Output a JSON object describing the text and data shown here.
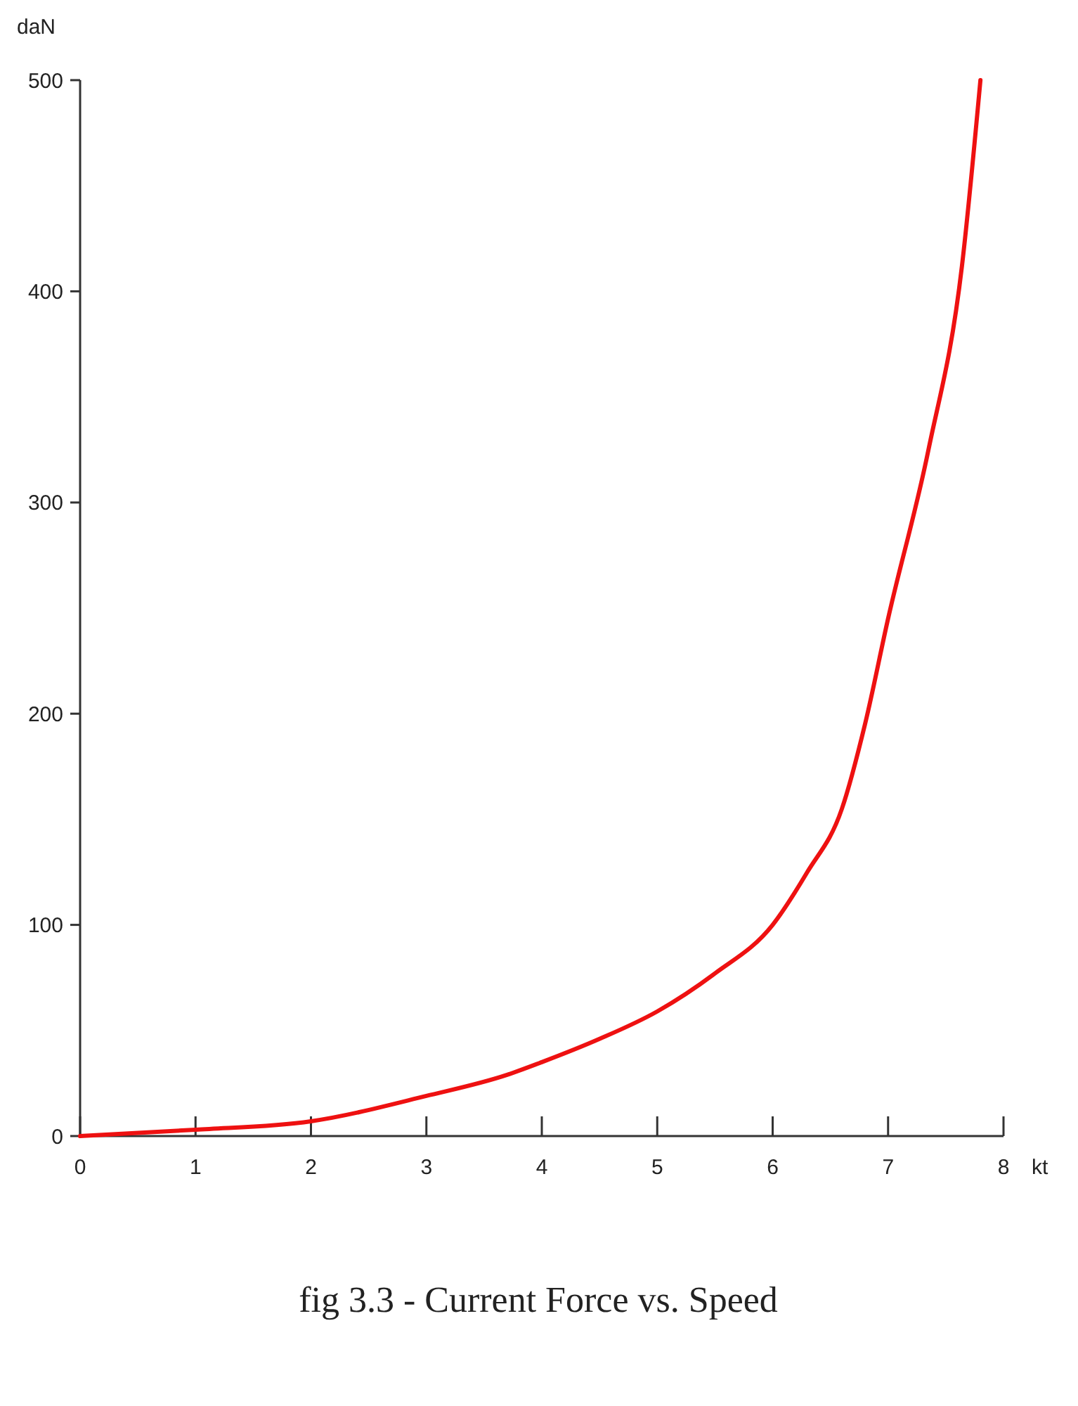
{
  "chart_data": {
    "type": "line",
    "title": "fig 3.3 - Current Force vs. Speed",
    "xlabel": "kt",
    "ylabel": "daN",
    "x": [
      0,
      1,
      2,
      3,
      3.7,
      4,
      4.5,
      5,
      5.5,
      6,
      6.3,
      6.6,
      6.8,
      7,
      7.35,
      7.64,
      7.8
    ],
    "series": [
      {
        "color": "#ee1111",
        "values": [
          0,
          3,
          7,
          19,
          29,
          35,
          46,
          59,
          77,
          100,
          125,
          155,
          195,
          245,
          325,
          412,
          500
        ]
      }
    ],
    "xlim": [
      0,
      8
    ],
    "ylim": [
      0,
      500
    ],
    "xticks": [
      0,
      1,
      2,
      3,
      4,
      5,
      6,
      7,
      8
    ],
    "yticks": [
      0,
      100,
      200,
      300,
      400,
      500
    ],
    "grid": false,
    "marker": "none",
    "line_style": "solid"
  }
}
